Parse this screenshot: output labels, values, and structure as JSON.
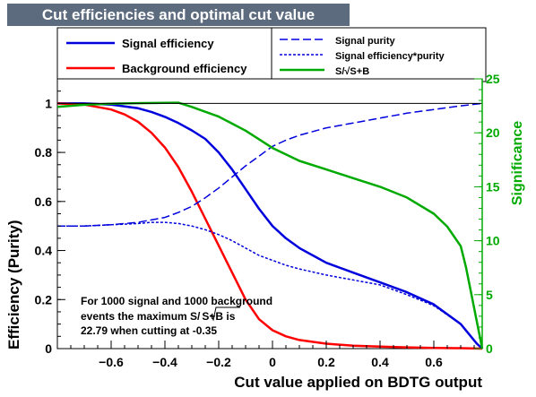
{
  "chart_data": {
    "type": "line",
    "title": "Cut efficiencies and optimal cut value",
    "xlabel": "Cut value applied on BDTG output",
    "ylabel": "Efficiency (Purity)",
    "y2label": "Significance",
    "xlim": [
      -0.8,
      0.78
    ],
    "ylim": [
      0,
      1.1
    ],
    "y2lim": [
      0,
      25
    ],
    "xticks": [
      "−0.6",
      "−0.4",
      "−0.2",
      "0",
      "0.2",
      "0.4",
      "0.6"
    ],
    "xtick_values": [
      -0.6,
      -0.4,
      -0.2,
      0,
      0.2,
      0.4,
      0.6
    ],
    "yticks": [
      "0",
      "0.2",
      "0.4",
      "0.6",
      "0.8",
      "1"
    ],
    "ytick_values": [
      0,
      0.2,
      0.4,
      0.6,
      0.8,
      1
    ],
    "y2ticks": [
      "0",
      "5",
      "10",
      "15",
      "20",
      "25"
    ],
    "y2tick_values": [
      0,
      5,
      10,
      15,
      20,
      25
    ],
    "annotation": [
      "For 1000 signal and 1000 background",
      "events the maximum S/",
      "S+B",
      " is",
      "22.79 when cutting at -0.35"
    ],
    "series": [
      {
        "name": "Signal efficiency",
        "axis": "left",
        "color": "#0000dd",
        "style": "solid",
        "x": [
          -0.8,
          -0.7,
          -0.6,
          -0.5,
          -0.45,
          -0.4,
          -0.35,
          -0.3,
          -0.25,
          -0.2,
          -0.15,
          -0.1,
          -0.05,
          0,
          0.05,
          0.1,
          0.15,
          0.2,
          0.3,
          0.4,
          0.5,
          0.6,
          0.7,
          0.76,
          0.78
        ],
        "y": [
          1,
          1,
          0.995,
          0.98,
          0.965,
          0.945,
          0.92,
          0.89,
          0.855,
          0.8,
          0.73,
          0.65,
          0.57,
          0.5,
          0.45,
          0.41,
          0.38,
          0.35,
          0.31,
          0.27,
          0.23,
          0.18,
          0.1,
          0.02,
          0
        ]
      },
      {
        "name": "Background efficiency",
        "axis": "left",
        "color": "#ff0000",
        "style": "solid",
        "x": [
          -0.8,
          -0.7,
          -0.6,
          -0.55,
          -0.5,
          -0.45,
          -0.4,
          -0.35,
          -0.3,
          -0.25,
          -0.2,
          -0.15,
          -0.1,
          -0.05,
          0,
          0.05,
          0.1,
          0.2,
          0.3,
          0.4,
          0.5,
          0.6,
          0.7,
          0.78
        ],
        "y": [
          1,
          0.995,
          0.975,
          0.955,
          0.925,
          0.88,
          0.82,
          0.74,
          0.64,
          0.53,
          0.42,
          0.31,
          0.2,
          0.12,
          0.075,
          0.05,
          0.035,
          0.02,
          0.012,
          0.008,
          0.005,
          0.003,
          0.002,
          0
        ]
      },
      {
        "name": "Signal purity",
        "axis": "left",
        "color": "#0000dd",
        "style": "dashed",
        "x": [
          -0.8,
          -0.7,
          -0.6,
          -0.5,
          -0.4,
          -0.35,
          -0.3,
          -0.25,
          -0.2,
          -0.15,
          -0.1,
          -0.05,
          0,
          0.05,
          0.1,
          0.2,
          0.3,
          0.4,
          0.5,
          0.6,
          0.7,
          0.78
        ],
        "y": [
          0.5,
          0.5,
          0.505,
          0.515,
          0.535,
          0.555,
          0.58,
          0.615,
          0.655,
          0.7,
          0.745,
          0.785,
          0.825,
          0.85,
          0.87,
          0.9,
          0.92,
          0.94,
          0.96,
          0.975,
          0.99,
          1
        ]
      },
      {
        "name": "Signal efficiency*purity",
        "axis": "left",
        "color": "#0000dd",
        "style": "dotted",
        "x": [
          -0.8,
          -0.7,
          -0.6,
          -0.5,
          -0.45,
          -0.4,
          -0.35,
          -0.3,
          -0.25,
          -0.2,
          -0.15,
          -0.1,
          -0.05,
          0,
          0.05,
          0.1,
          0.2,
          0.3,
          0.4,
          0.5,
          0.6,
          0.7,
          0.76,
          0.78
        ],
        "y": [
          0.5,
          0.5,
          0.505,
          0.51,
          0.515,
          0.515,
          0.51,
          0.5,
          0.485,
          0.465,
          0.44,
          0.41,
          0.38,
          0.36,
          0.34,
          0.325,
          0.3,
          0.28,
          0.26,
          0.22,
          0.175,
          0.1,
          0.02,
          0
        ]
      },
      {
        "name": "S/√S+B",
        "axis": "right",
        "color": "#00aa00",
        "style": "solid",
        "x": [
          -0.8,
          -0.7,
          -0.6,
          -0.5,
          -0.4,
          -0.35,
          -0.3,
          -0.2,
          -0.1,
          0,
          0.1,
          0.2,
          0.3,
          0.4,
          0.5,
          0.6,
          0.65,
          0.7,
          0.72,
          0.74,
          0.76,
          0.78
        ],
        "y": [
          22.4,
          22.6,
          22.7,
          22.75,
          22.78,
          22.79,
          22.4,
          21.5,
          20.2,
          18.6,
          17.4,
          16.6,
          15.8,
          15.0,
          14.0,
          12.5,
          11.3,
          9.5,
          7.5,
          5.0,
          2.5,
          0
        ]
      }
    ]
  }
}
